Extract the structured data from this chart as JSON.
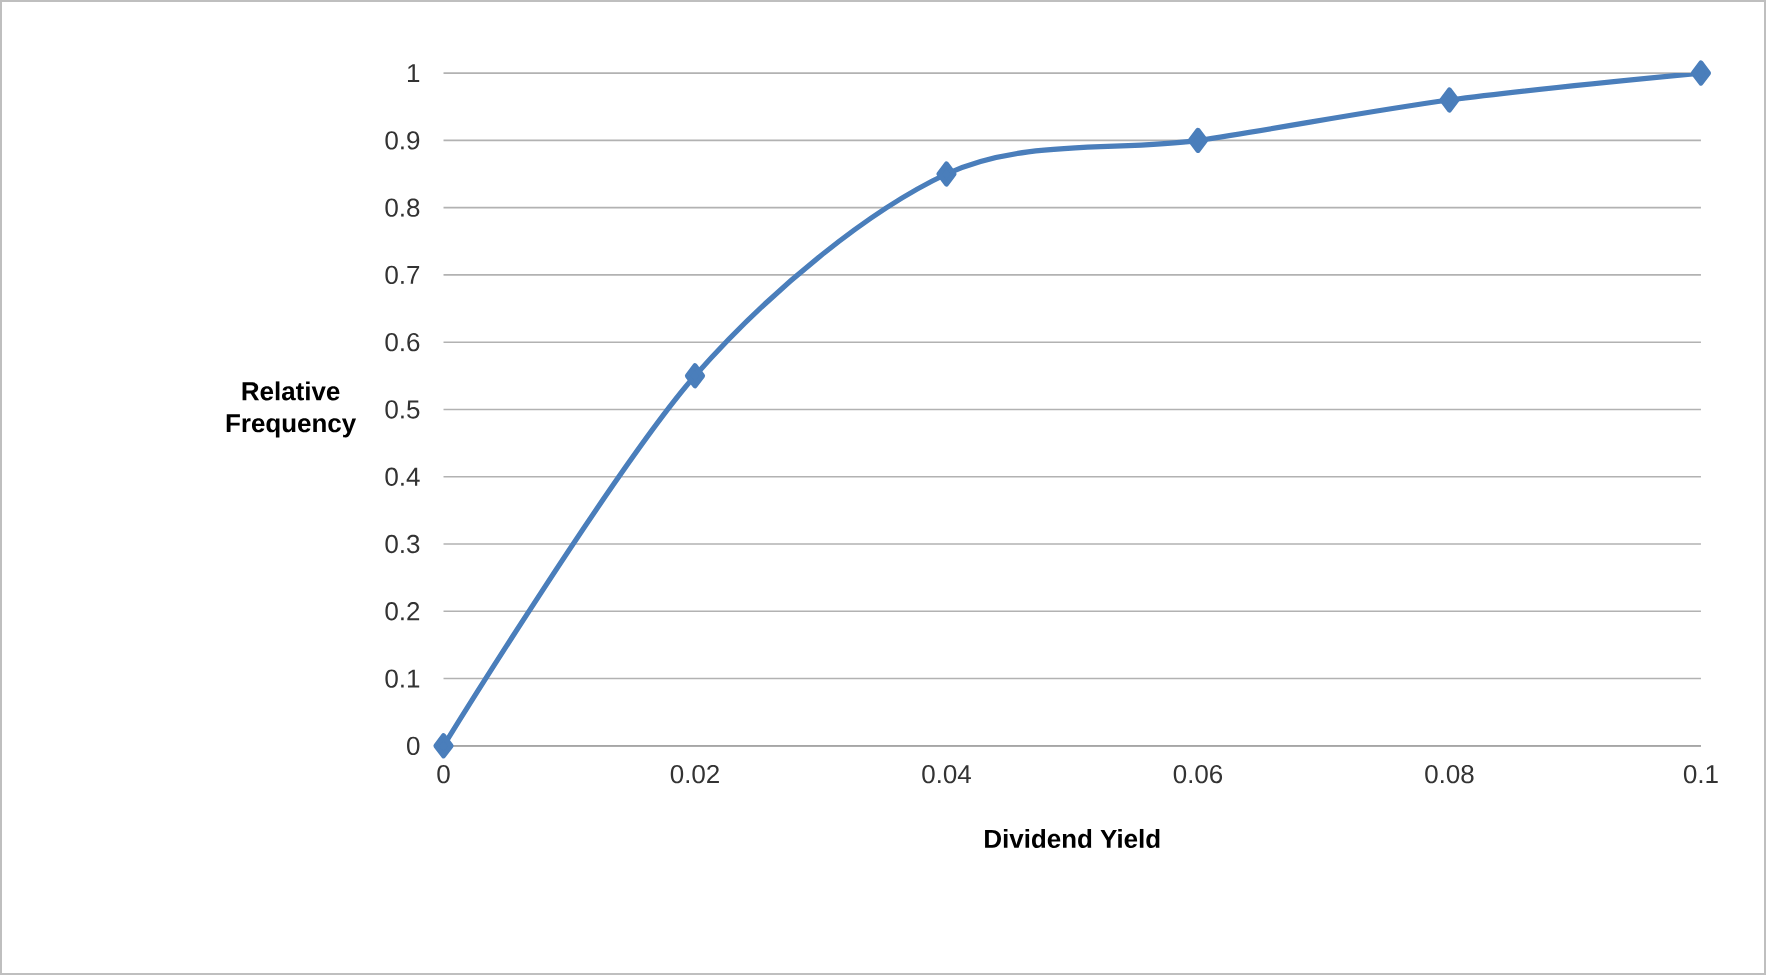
{
  "chart_data": {
    "type": "line",
    "xlabel": "Dividend Yield",
    "ylabel": "Relative Frequency",
    "x": [
      0,
      0.02,
      0.04,
      0.06,
      0.08,
      0.1
    ],
    "series": [
      {
        "color": "#4a7ebb",
        "values": [
          0,
          0.55,
          0.85,
          0.9,
          0.96,
          1
        ]
      }
    ],
    "xlim": [
      0,
      0.1
    ],
    "ylim": [
      0,
      1
    ],
    "xticks": [
      0,
      0.02,
      0.04,
      0.06,
      0.08,
      0.1
    ],
    "yticks": [
      0,
      0.1,
      0.2,
      0.3,
      0.4,
      0.5,
      0.6,
      0.7,
      0.8,
      0.9,
      1
    ],
    "grid": "y",
    "marker": "diamond",
    "line_style": "solid"
  }
}
